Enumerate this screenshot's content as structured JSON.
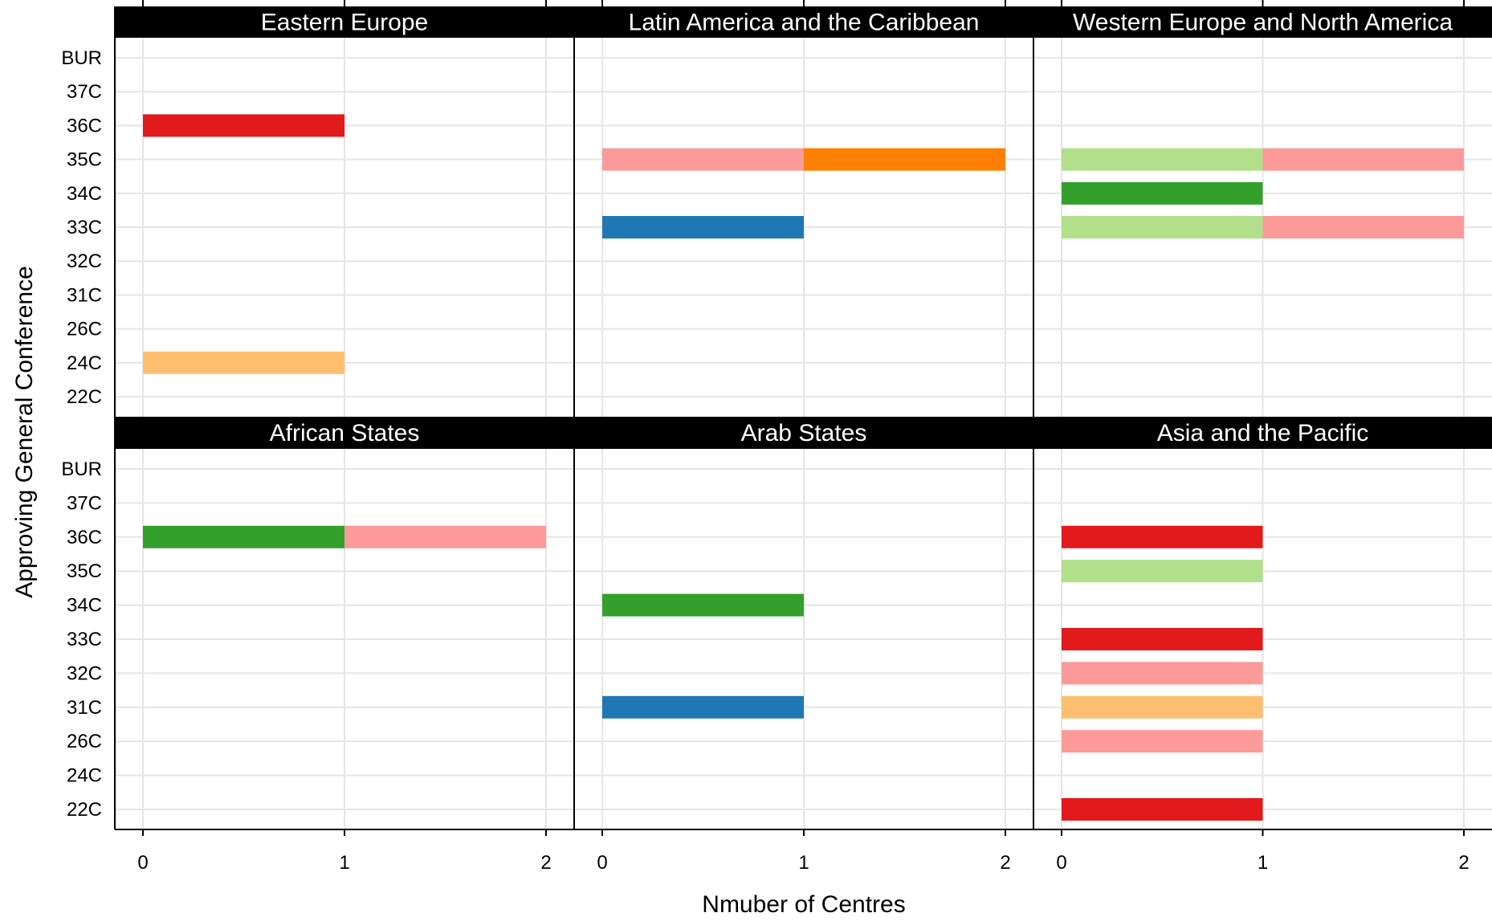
{
  "chart_data": {
    "type": "bar",
    "orientation": "horizontal",
    "stacked": true,
    "facet_grid": "2x3",
    "xlabel": "Nmuber of Centres",
    "ylabel": "Approving General Conference",
    "xlim": [
      0,
      2
    ],
    "x_ticks": [
      "0",
      "1",
      "2"
    ],
    "categories": [
      "22C",
      "24C",
      "26C",
      "31C",
      "32C",
      "33C",
      "34C",
      "35C",
      "36C",
      "37C",
      "BUR"
    ],
    "grid": true,
    "legend": "none",
    "panels": [
      {
        "title": "Eastern Europe",
        "bars": [
          {
            "category": "36C",
            "segments": [
              {
                "value": 1,
                "color": "#e31a1c"
              }
            ]
          },
          {
            "category": "24C",
            "segments": [
              {
                "value": 1,
                "color": "#fdbf6f"
              }
            ]
          }
        ]
      },
      {
        "title": "Latin America and the Caribbean",
        "bars": [
          {
            "category": "35C",
            "segments": [
              {
                "value": 1,
                "color": "#fb9a99"
              },
              {
                "value": 1,
                "color": "#ff7f00"
              }
            ]
          },
          {
            "category": "33C",
            "segments": [
              {
                "value": 1,
                "color": "#1f78b4"
              }
            ]
          }
        ]
      },
      {
        "title": "Western Europe and North America",
        "bars": [
          {
            "category": "35C",
            "segments": [
              {
                "value": 1,
                "color": "#b2df8a"
              },
              {
                "value": 1,
                "color": "#fb9a99"
              }
            ]
          },
          {
            "category": "34C",
            "segments": [
              {
                "value": 1,
                "color": "#33a02c"
              }
            ]
          },
          {
            "category": "33C",
            "segments": [
              {
                "value": 1,
                "color": "#b2df8a"
              },
              {
                "value": 1,
                "color": "#fb9a99"
              }
            ]
          }
        ]
      },
      {
        "title": "African States",
        "bars": [
          {
            "category": "36C",
            "segments": [
              {
                "value": 1,
                "color": "#33a02c"
              },
              {
                "value": 1,
                "color": "#fb9a99"
              }
            ]
          }
        ]
      },
      {
        "title": "Arab States",
        "bars": [
          {
            "category": "34C",
            "segments": [
              {
                "value": 1,
                "color": "#33a02c"
              }
            ]
          },
          {
            "category": "31C",
            "segments": [
              {
                "value": 1,
                "color": "#1f78b4"
              }
            ]
          }
        ]
      },
      {
        "title": "Asia and the Pacific",
        "bars": [
          {
            "category": "36C",
            "segments": [
              {
                "value": 1,
                "color": "#e31a1c"
              }
            ]
          },
          {
            "category": "35C",
            "segments": [
              {
                "value": 1,
                "color": "#b2df8a"
              }
            ]
          },
          {
            "category": "33C",
            "segments": [
              {
                "value": 1,
                "color": "#e31a1c"
              }
            ]
          },
          {
            "category": "32C",
            "segments": [
              {
                "value": 1,
                "color": "#fb9a99"
              }
            ]
          },
          {
            "category": "31C",
            "segments": [
              {
                "value": 1,
                "color": "#fdbf6f"
              }
            ]
          },
          {
            "category": "26C",
            "segments": [
              {
                "value": 1,
                "color": "#fb9a99"
              }
            ]
          },
          {
            "category": "22C",
            "segments": [
              {
                "value": 1,
                "color": "#e31a1c"
              }
            ]
          }
        ]
      }
    ]
  }
}
